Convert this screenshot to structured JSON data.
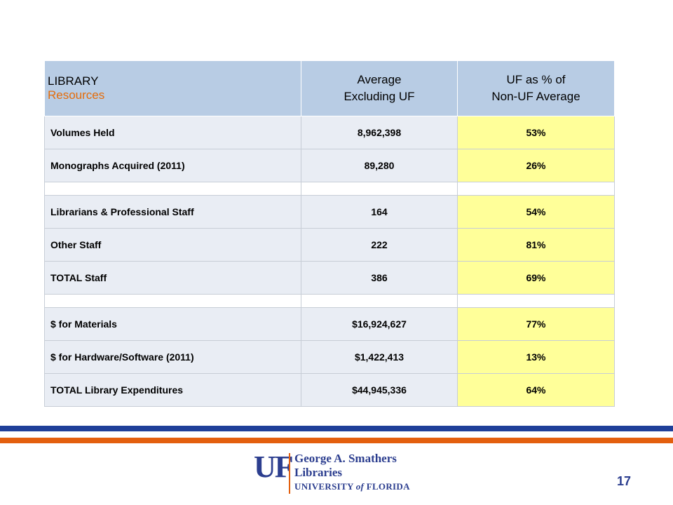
{
  "table": {
    "headers": {
      "col1_line1": "LIBRARY",
      "col1_line2": "Resources",
      "col2_line1": "Average",
      "col2_line2": "Excluding UF",
      "col3_line1": "UF as % of",
      "col3_line2": "Non-UF Average"
    },
    "rows": [
      {
        "label": "Volumes Held",
        "average": "8,962,398",
        "pct": "53%"
      },
      {
        "label": "Monographs Acquired (2011)",
        "average": "89,280",
        "pct": "26%"
      },
      {
        "label": "Librarians & Professional Staff",
        "average": "164",
        "pct": "54%"
      },
      {
        "label": "Other Staff",
        "average": "222",
        "pct": "81%"
      },
      {
        "label": "TOTAL Staff",
        "average": "386",
        "pct": "69%"
      },
      {
        "label": "$ for Materials",
        "average": "$16,924,627",
        "pct": "77%"
      },
      {
        "label": "$ for Hardware/Software (2011)",
        "average": "$1,422,413",
        "pct": "13%"
      },
      {
        "label": "TOTAL Library Expenditures",
        "average": "$44,945,336",
        "pct": "64%"
      }
    ]
  },
  "logo": {
    "mark": "UF",
    "line1": "George A. Smathers",
    "line2": "Libraries",
    "line3_a": "UNIVERSITY",
    "line3_b": "of",
    "line3_c": "FLORIDA"
  },
  "page_number": "17",
  "colors": {
    "header_bg": "#b8cce4",
    "row_bg": "#e9edf4",
    "highlight_bg": "#ffff99",
    "accent_orange": "#e35f0e",
    "accent_blue": "#1f3f99"
  }
}
